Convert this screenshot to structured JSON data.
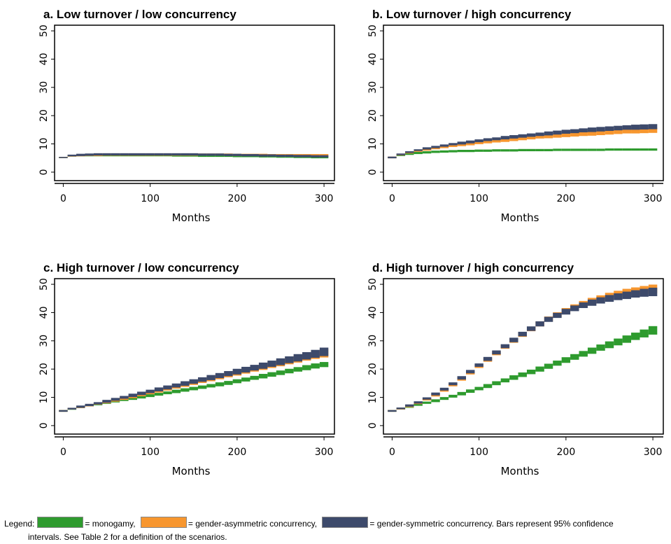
{
  "chart_data": [
    {
      "type": "range",
      "title": "a. Low turnover / low concurrency",
      "x_label": "Months",
      "x": [
        0,
        10,
        20,
        30,
        40,
        50,
        60,
        70,
        80,
        90,
        100,
        110,
        120,
        130,
        140,
        150,
        160,
        170,
        180,
        190,
        200,
        210,
        220,
        230,
        240,
        250,
        260,
        270,
        280,
        290,
        300
      ],
      "xlim": [
        -10,
        312
      ],
      "ylim": [
        -3,
        52
      ],
      "xticks": [
        0,
        100,
        200,
        300
      ],
      "yticks": [
        0,
        10,
        20,
        30,
        40,
        50
      ],
      "series": [
        {
          "color": "#2e9b2e",
          "values": [
            5.2,
            5.8,
            6.0,
            6.0,
            6.0,
            6.0,
            6.0,
            6.0,
            6.0,
            6.0,
            6.0,
            6.0,
            6.0,
            5.9,
            5.9,
            5.9,
            5.8,
            5.8,
            5.8,
            5.8,
            5.7,
            5.7,
            5.7,
            5.6,
            5.6,
            5.5,
            5.5,
            5.4,
            5.4,
            5.3,
            5.3
          ],
          "errors": [
            0.2,
            0.3,
            0.4,
            0.4,
            0.4,
            0.4,
            0.4,
            0.4,
            0.4,
            0.4,
            0.4,
            0.4,
            0.4,
            0.4,
            0.4,
            0.4,
            0.4,
            0.4,
            0.4,
            0.4,
            0.4,
            0.4,
            0.4,
            0.4,
            0.4,
            0.4,
            0.4,
            0.4,
            0.4,
            0.4,
            0.4
          ]
        },
        {
          "color": "#f7962e",
          "values": [
            5.2,
            5.8,
            6.0,
            6.1,
            6.1,
            6.2,
            6.2,
            6.2,
            6.2,
            6.2,
            6.2,
            6.2,
            6.2,
            6.2,
            6.2,
            6.2,
            6.2,
            6.2,
            6.2,
            6.2,
            6.1,
            6.1,
            6.1,
            6.1,
            6.0,
            6.0,
            6.0,
            6.0,
            6.0,
            6.0,
            6.0
          ],
          "errors": [
            0.2,
            0.3,
            0.4,
            0.4,
            0.4,
            0.4,
            0.4,
            0.4,
            0.4,
            0.4,
            0.4,
            0.4,
            0.4,
            0.4,
            0.4,
            0.4,
            0.4,
            0.4,
            0.4,
            0.4,
            0.4,
            0.4,
            0.4,
            0.4,
            0.4,
            0.4,
            0.4,
            0.4,
            0.4,
            0.4,
            0.4
          ]
        },
        {
          "color": "#3d4a6b",
          "values": [
            5.2,
            5.9,
            6.1,
            6.2,
            6.3,
            6.3,
            6.3,
            6.3,
            6.3,
            6.3,
            6.3,
            6.3,
            6.3,
            6.3,
            6.3,
            6.3,
            6.2,
            6.2,
            6.2,
            6.1,
            6.1,
            6.0,
            6.0,
            5.9,
            5.9,
            5.8,
            5.8,
            5.7,
            5.7,
            5.6,
            5.6
          ],
          "errors": [
            0.2,
            0.3,
            0.4,
            0.4,
            0.4,
            0.4,
            0.4,
            0.4,
            0.4,
            0.4,
            0.4,
            0.4,
            0.4,
            0.4,
            0.4,
            0.4,
            0.4,
            0.4,
            0.4,
            0.4,
            0.4,
            0.4,
            0.4,
            0.4,
            0.4,
            0.4,
            0.4,
            0.4,
            0.4,
            0.4,
            0.4
          ]
        }
      ]
    },
    {
      "type": "range",
      "title": "b. Low turnover / high concurrency",
      "x_label": "Months",
      "x": [
        0,
        10,
        20,
        30,
        40,
        50,
        60,
        70,
        80,
        90,
        100,
        110,
        120,
        130,
        140,
        150,
        160,
        170,
        180,
        190,
        200,
        210,
        220,
        230,
        240,
        250,
        260,
        270,
        280,
        290,
        300
      ],
      "xlim": [
        -10,
        312
      ],
      "ylim": [
        -3,
        52
      ],
      "xticks": [
        0,
        100,
        200,
        300
      ],
      "yticks": [
        0,
        10,
        20,
        30,
        40,
        50
      ],
      "series": [
        {
          "color": "#2e9b2e",
          "values": [
            5.2,
            6.0,
            6.5,
            6.8,
            7.0,
            7.2,
            7.3,
            7.4,
            7.5,
            7.5,
            7.6,
            7.6,
            7.7,
            7.7,
            7.7,
            7.8,
            7.8,
            7.8,
            7.8,
            7.9,
            7.9,
            7.9,
            7.9,
            7.9,
            7.9,
            8.0,
            8.0,
            8.0,
            8.0,
            8.0,
            8.0
          ],
          "errors": [
            0.2,
            0.3,
            0.4,
            0.4,
            0.4,
            0.4,
            0.4,
            0.4,
            0.4,
            0.4,
            0.4,
            0.4,
            0.4,
            0.4,
            0.4,
            0.4,
            0.4,
            0.4,
            0.4,
            0.4,
            0.4,
            0.4,
            0.4,
            0.4,
            0.4,
            0.4,
            0.4,
            0.4,
            0.4,
            0.4,
            0.4
          ]
        },
        {
          "color": "#f7962e",
          "values": [
            5.2,
            6.2,
            6.9,
            7.5,
            8.0,
            8.5,
            8.9,
            9.3,
            9.7,
            10.0,
            10.4,
            10.7,
            11.0,
            11.3,
            11.6,
            11.9,
            12.2,
            12.5,
            12.7,
            12.9,
            13.1,
            13.3,
            13.5,
            13.7,
            13.9,
            14.1,
            14.3,
            14.5,
            14.6,
            14.7,
            14.8
          ],
          "errors": [
            0.3,
            0.3,
            0.3,
            0.3,
            0.4,
            0.4,
            0.4,
            0.4,
            0.5,
            0.5,
            0.5,
            0.5,
            0.5,
            0.6,
            0.6,
            0.6,
            0.6,
            0.6,
            0.7,
            0.7,
            0.7,
            0.7,
            0.7,
            0.8,
            0.8,
            0.8,
            0.8,
            0.8,
            0.9,
            0.9,
            0.9
          ]
        },
        {
          "color": "#3d4a6b",
          "values": [
            5.2,
            6.3,
            7.1,
            7.8,
            8.4,
            8.9,
            9.4,
            9.9,
            10.3,
            10.7,
            11.1,
            11.5,
            11.8,
            12.2,
            12.5,
            12.8,
            13.1,
            13.4,
            13.7,
            14.0,
            14.3,
            14.5,
            14.8,
            15.0,
            15.2,
            15.4,
            15.6,
            15.8,
            15.9,
            16.0,
            16.1
          ],
          "errors": [
            0.3,
            0.3,
            0.3,
            0.3,
            0.4,
            0.4,
            0.4,
            0.4,
            0.5,
            0.5,
            0.5,
            0.5,
            0.5,
            0.6,
            0.6,
            0.6,
            0.6,
            0.6,
            0.7,
            0.7,
            0.7,
            0.7,
            0.7,
            0.8,
            0.8,
            0.8,
            0.8,
            0.8,
            0.9,
            0.9,
            0.9
          ]
        }
      ]
    },
    {
      "type": "range",
      "title": "c. High turnover / low concurrency",
      "x_label": "Months",
      "x": [
        0,
        10,
        20,
        30,
        40,
        50,
        60,
        70,
        80,
        90,
        100,
        110,
        120,
        130,
        140,
        150,
        160,
        170,
        180,
        190,
        200,
        210,
        220,
        230,
        240,
        250,
        260,
        270,
        280,
        290,
        300
      ],
      "xlim": [
        -10,
        312
      ],
      "ylim": [
        -3,
        52
      ],
      "xticks": [
        0,
        100,
        200,
        300
      ],
      "yticks": [
        0,
        10,
        20,
        30,
        40,
        50
      ],
      "series": [
        {
          "color": "#2e9b2e",
          "values": [
            5.2,
            5.9,
            6.5,
            7.1,
            7.6,
            8.1,
            8.6,
            9.1,
            9.6,
            10.1,
            10.6,
            11.1,
            11.6,
            12.1,
            12.6,
            13.1,
            13.6,
            14.1,
            14.6,
            15.1,
            15.7,
            16.3,
            16.9,
            17.5,
            18.1,
            18.7,
            19.3,
            19.9,
            20.5,
            21.1,
            21.6
          ],
          "errors": [
            0.3,
            0.3,
            0.3,
            0.3,
            0.4,
            0.4,
            0.4,
            0.4,
            0.5,
            0.5,
            0.5,
            0.5,
            0.5,
            0.6,
            0.6,
            0.6,
            0.6,
            0.6,
            0.7,
            0.7,
            0.7,
            0.7,
            0.7,
            0.8,
            0.8,
            0.8,
            0.8,
            0.8,
            0.9,
            0.9,
            0.9
          ]
        },
        {
          "color": "#f7962e",
          "values": [
            5.2,
            6.0,
            6.6,
            7.2,
            7.8,
            8.4,
            9.0,
            9.6,
            10.3,
            11.0,
            11.7,
            12.4,
            13.1,
            13.8,
            14.5,
            15.2,
            15.9,
            16.6,
            17.3,
            18.0,
            18.7,
            19.4,
            20.1,
            20.8,
            21.5,
            22.2,
            22.9,
            23.6,
            24.3,
            25.0,
            25.6
          ],
          "errors": [
            0.3,
            0.3,
            0.4,
            0.4,
            0.4,
            0.5,
            0.5,
            0.5,
            0.6,
            0.6,
            0.6,
            0.7,
            0.7,
            0.7,
            0.8,
            0.8,
            0.8,
            0.9,
            0.9,
            0.9,
            1.0,
            1.0,
            1.0,
            1.1,
            1.1,
            1.2,
            1.2,
            1.3,
            1.3,
            1.4,
            1.5
          ]
        },
        {
          "color": "#3d4a6b",
          "values": [
            5.2,
            6.0,
            6.7,
            7.3,
            7.9,
            8.6,
            9.3,
            10.0,
            10.7,
            11.4,
            12.1,
            12.8,
            13.5,
            14.2,
            14.9,
            15.6,
            16.3,
            17.0,
            17.7,
            18.4,
            19.1,
            19.8,
            20.5,
            21.2,
            21.9,
            22.6,
            23.3,
            24.0,
            24.7,
            25.4,
            26.1
          ],
          "errors": [
            0.3,
            0.3,
            0.4,
            0.4,
            0.4,
            0.5,
            0.5,
            0.5,
            0.6,
            0.6,
            0.6,
            0.7,
            0.7,
            0.7,
            0.8,
            0.8,
            0.8,
            0.9,
            0.9,
            0.9,
            1.0,
            1.0,
            1.0,
            1.1,
            1.1,
            1.2,
            1.2,
            1.3,
            1.3,
            1.4,
            1.5
          ]
        }
      ]
    },
    {
      "type": "range",
      "title": "d. High turnover / high concurrency",
      "x_label": "Months",
      "x": [
        0,
        10,
        20,
        30,
        40,
        50,
        60,
        70,
        80,
        90,
        100,
        110,
        120,
        130,
        140,
        150,
        160,
        170,
        180,
        190,
        200,
        210,
        220,
        230,
        240,
        250,
        260,
        270,
        280,
        290,
        300
      ],
      "xlim": [
        -10,
        312
      ],
      "ylim": [
        -3,
        52
      ],
      "xticks": [
        0,
        100,
        200,
        300
      ],
      "yticks": [
        0,
        10,
        20,
        30,
        40,
        50
      ],
      "series": [
        {
          "color": "#2e9b2e",
          "values": [
            5.2,
            6.0,
            6.7,
            7.4,
            8.1,
            8.8,
            9.6,
            10.4,
            11.3,
            12.2,
            13.1,
            14.0,
            15.0,
            16.0,
            17.0,
            18.0,
            19.0,
            20.0,
            21.0,
            22.1,
            23.2,
            24.3,
            25.4,
            26.5,
            27.6,
            28.6,
            29.6,
            30.6,
            31.6,
            32.6,
            33.7
          ],
          "errors": [
            0.3,
            0.3,
            0.4,
            0.4,
            0.4,
            0.5,
            0.5,
            0.5,
            0.6,
            0.6,
            0.6,
            0.7,
            0.7,
            0.7,
            0.8,
            0.8,
            0.8,
            0.9,
            0.9,
            0.9,
            1.0,
            1.0,
            1.0,
            1.1,
            1.1,
            1.2,
            1.2,
            1.3,
            1.3,
            1.4,
            1.5
          ]
        },
        {
          "color": "#f7962e",
          "values": [
            5.2,
            6.0,
            6.9,
            8.0,
            9.3,
            10.8,
            12.5,
            14.4,
            16.5,
            18.7,
            21.0,
            23.3,
            25.6,
            27.9,
            30.1,
            32.2,
            34.2,
            36.0,
            37.7,
            39.2,
            40.6,
            41.9,
            43.1,
            44.1,
            45.0,
            45.8,
            46.5,
            47.1,
            47.6,
            48.0,
            48.4
          ],
          "errors": [
            0.3,
            0.3,
            0.4,
            0.4,
            0.4,
            0.5,
            0.5,
            0.5,
            0.6,
            0.6,
            0.6,
            0.7,
            0.7,
            0.7,
            0.8,
            0.8,
            0.8,
            0.9,
            0.9,
            0.9,
            1.0,
            1.0,
            1.0,
            1.1,
            1.1,
            1.2,
            1.2,
            1.3,
            1.3,
            1.4,
            1.5
          ]
        },
        {
          "color": "#3d4a6b",
          "values": [
            5.2,
            6.1,
            7.1,
            8.2,
            9.6,
            11.2,
            12.9,
            14.8,
            16.9,
            19.1,
            21.4,
            23.6,
            25.9,
            28.1,
            30.3,
            32.4,
            34.3,
            36.0,
            37.6,
            39.0,
            40.3,
            41.5,
            42.6,
            43.5,
            44.3,
            45.0,
            45.6,
            46.1,
            46.6,
            47.0,
            47.3
          ],
          "errors": [
            0.3,
            0.3,
            0.4,
            0.4,
            0.4,
            0.5,
            0.5,
            0.5,
            0.6,
            0.6,
            0.6,
            0.7,
            0.7,
            0.7,
            0.8,
            0.8,
            0.8,
            0.9,
            0.9,
            0.9,
            1.0,
            1.0,
            1.0,
            1.1,
            1.1,
            1.2,
            1.2,
            1.3,
            1.3,
            1.4,
            1.5
          ]
        }
      ]
    }
  ],
  "legend": {
    "title": "Legend:",
    "items": [
      {
        "color": "#2e9b2e",
        "label": "= monogamy,"
      },
      {
        "color": "#f7962e",
        "label": "= gender-asymmetric concurrency,"
      },
      {
        "color": "#3d4a6b",
        "label": "= gender-symmetric concurrency."
      }
    ],
    "note": "Bars represent 95% confidence intervals. See Table 2 for a definition of the scenarios."
  }
}
